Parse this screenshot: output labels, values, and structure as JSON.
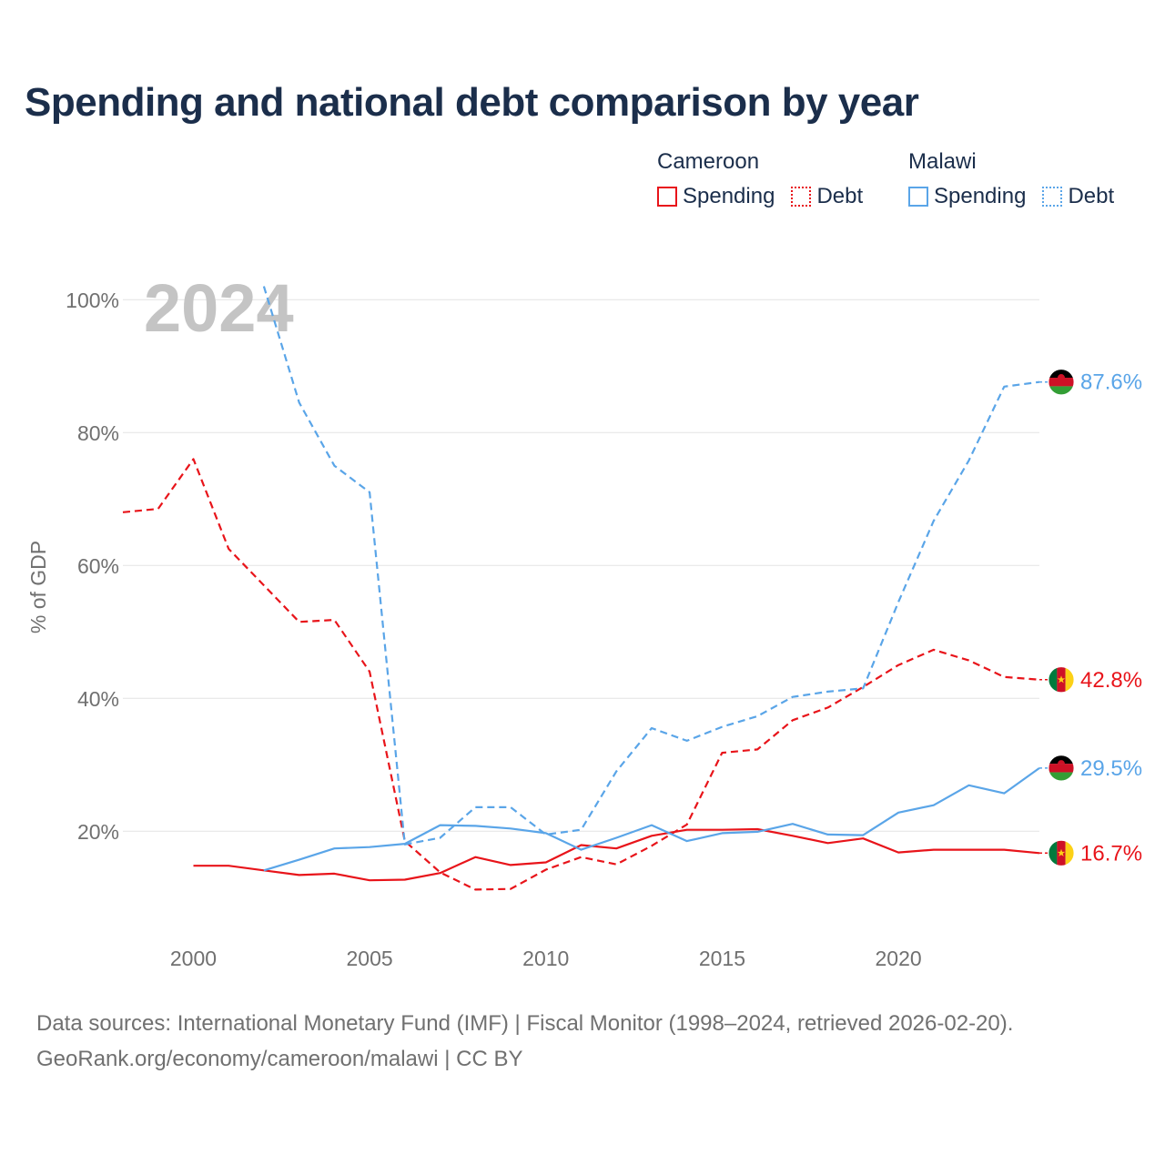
{
  "title": "Spending and national debt comparison by year",
  "legend": {
    "groups": [
      {
        "country": "Cameroon",
        "items": [
          {
            "label": "Spending",
            "style": "solid"
          },
          {
            "label": "Debt",
            "style": "dotted"
          }
        ],
        "color": "#e8141a"
      },
      {
        "country": "Malawi",
        "items": [
          {
            "label": "Spending",
            "style": "solid"
          },
          {
            "label": "Debt",
            "style": "dotted"
          }
        ],
        "color": "#5aa5e8"
      }
    ]
  },
  "colors": {
    "cameroon": "#e8141a",
    "malawi": "#5aa5e8",
    "grid": "#e3e3e3",
    "axis_text": "#707070",
    "year_watermark": "#c4c4c4"
  },
  "chart_data": {
    "type": "line",
    "title": "Spending and national debt comparison by year",
    "xlabel": "",
    "ylabel": "% of GDP",
    "xlim": [
      1998,
      2024
    ],
    "ylim": [
      4,
      104
    ],
    "x_ticks": [
      2000,
      2005,
      2010,
      2015,
      2020
    ],
    "y_ticks": [
      20,
      40,
      60,
      80,
      100
    ],
    "y_tick_labels": [
      "20%",
      "40%",
      "60%",
      "80%",
      "100%"
    ],
    "year_label": "2024",
    "series": [
      {
        "name": "Cameroon Debt",
        "country": "Cameroon",
        "metric": "Debt",
        "dash": "dashed",
        "color": "#e8141a",
        "x": [
          1998,
          1999,
          2000,
          2001,
          2002,
          2003,
          2004,
          2005,
          2006,
          2007,
          2008,
          2009,
          2010,
          2011,
          2012,
          2013,
          2014,
          2015,
          2016,
          2017,
          2018,
          2019,
          2020,
          2021,
          2022,
          2023,
          2024
        ],
        "values": [
          68,
          68.5,
          76,
          62.5,
          57,
          51.5,
          51.8,
          44,
          18.5,
          13.8,
          11.2,
          11.3,
          14.2,
          16.1,
          15,
          17.8,
          21,
          31.8,
          32.3,
          36.7,
          38.6,
          41.7,
          45,
          47.3,
          45.7,
          43.2,
          42.8
        ],
        "end_label": "42.8%"
      },
      {
        "name": "Cameroon Spending",
        "country": "Cameroon",
        "metric": "Spending",
        "dash": "solid",
        "color": "#e8141a",
        "x": [
          2000,
          2001,
          2002,
          2003,
          2004,
          2005,
          2006,
          2007,
          2008,
          2009,
          2010,
          2011,
          2012,
          2013,
          2014,
          2015,
          2016,
          2017,
          2018,
          2019,
          2020,
          2021,
          2022,
          2023,
          2024
        ],
        "values": [
          14.8,
          14.8,
          14.1,
          13.4,
          13.6,
          12.6,
          12.7,
          13.7,
          16.1,
          14.9,
          15.3,
          17.9,
          17.4,
          19.3,
          20.2,
          20.2,
          20.3,
          19.3,
          18.2,
          18.9,
          16.8,
          17.2,
          17.2,
          17.2,
          16.7
        ],
        "end_label": "16.7%"
      },
      {
        "name": "Malawi Debt",
        "country": "Malawi",
        "metric": "Debt",
        "dash": "dashed",
        "color": "#5aa5e8",
        "x": [
          2002,
          2003,
          2004,
          2005,
          2006,
          2007,
          2008,
          2009,
          2010,
          2011,
          2012,
          2013,
          2014,
          2015,
          2016,
          2017,
          2018,
          2019,
          2020,
          2021,
          2022,
          2023,
          2024
        ],
        "values": [
          102,
          84.5,
          75,
          71,
          18,
          19,
          23.6,
          23.6,
          19.5,
          20.2,
          29,
          35.5,
          33.6,
          35.7,
          37.3,
          40.2,
          41,
          41.5,
          54.5,
          66.7,
          75.8,
          86.9,
          87.6
        ],
        "end_label": "87.6%"
      },
      {
        "name": "Malawi Spending",
        "country": "Malawi",
        "metric": "Spending",
        "dash": "solid",
        "color": "#5aa5e8",
        "x": [
          2002,
          2003,
          2004,
          2005,
          2006,
          2007,
          2008,
          2009,
          2010,
          2011,
          2012,
          2013,
          2014,
          2015,
          2016,
          2017,
          2018,
          2019,
          2020,
          2021,
          2022,
          2023,
          2024
        ],
        "values": [
          14.1,
          15.7,
          17.4,
          17.6,
          18.1,
          20.9,
          20.8,
          20.4,
          19.7,
          17.2,
          19,
          20.9,
          18.5,
          19.7,
          19.9,
          21.1,
          19.5,
          19.4,
          22.8,
          23.9,
          26.9,
          25.7,
          29.5
        ],
        "end_label": "29.5%"
      }
    ]
  },
  "source": {
    "line1": "Data sources: International Monetary Fund (IMF) | Fiscal Monitor (1998–2024, retrieved 2026-02-20).",
    "line2": "GeoRank.org/economy/cameroon/malawi | CC BY"
  }
}
